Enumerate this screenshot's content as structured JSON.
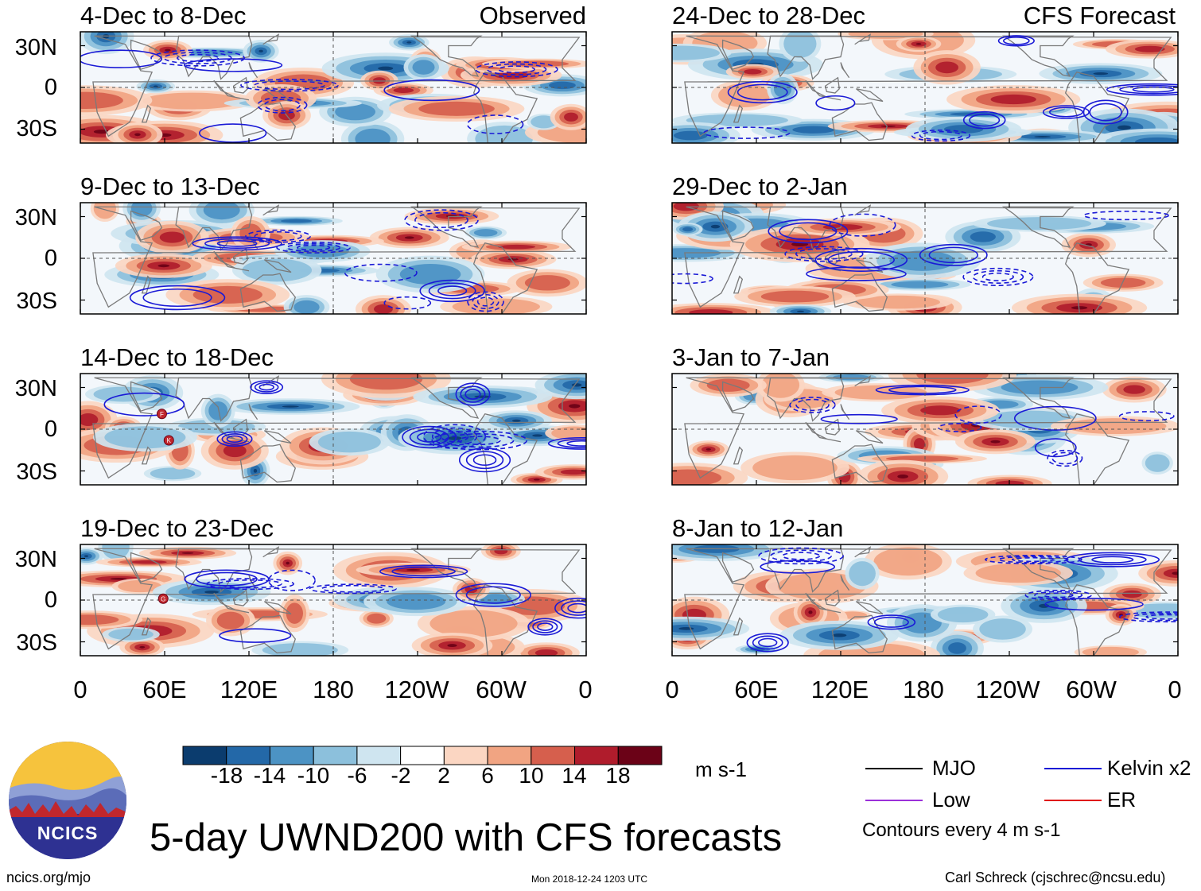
{
  "chart_data": {
    "type": "heatmap",
    "title": "5-day UWND200 with CFS forecasts",
    "variable": "200-hPa zonal wind anomaly",
    "units": "m s-1",
    "contour_note": "Contours every 4 m s-1",
    "x_tick_labels": [
      "0",
      "60E",
      "120E",
      "180",
      "120W",
      "60W",
      "0"
    ],
    "y_tick_labels": [
      "30N",
      "0",
      "30S"
    ],
    "x_range_deg_east": [
      0,
      360
    ],
    "y_range_deg": [
      -40,
      40
    ],
    "colorbar": {
      "tick_labels": [
        "-18",
        "-14",
        "-10",
        "-6",
        "-2",
        "2",
        "6",
        "10",
        "14",
        "18"
      ],
      "colors": [
        "#0b3c6e",
        "#2368a8",
        "#4c93c4",
        "#8cc0dc",
        "#cfe5f0",
        "#ffffff",
        "#fbd6c2",
        "#f1a482",
        "#d65f4d",
        "#b01c2c",
        "#6b0217"
      ]
    },
    "legend": [
      {
        "label": "MJO",
        "color": "#000000"
      },
      {
        "label": "Kelvin x2",
        "color": "#1a1ad6"
      },
      {
        "label": "Low",
        "color": "#9b30d9"
      },
      {
        "label": "ER",
        "color": "#e01010"
      }
    ],
    "panels": [
      {
        "id": "p1",
        "period": "4-Dec to 8-Dec",
        "tag": "Observed"
      },
      {
        "id": "p2",
        "period": "9-Dec to 13-Dec",
        "tag": ""
      },
      {
        "id": "p3",
        "period": "14-Dec to 18-Dec",
        "tag": "",
        "storm_markers": [
          "F",
          "K"
        ]
      },
      {
        "id": "p4",
        "period": "19-Dec to 23-Dec",
        "tag": "",
        "storm_markers": [
          "G"
        ]
      },
      {
        "id": "p5",
        "period": "24-Dec to 28-Dec",
        "tag": "CFS Forecast"
      },
      {
        "id": "p6",
        "period": "29-Dec to 2-Jan",
        "tag": ""
      },
      {
        "id": "p7",
        "period": "3-Jan to 7-Jan",
        "tag": ""
      },
      {
        "id": "p8",
        "period": "8-Jan to 12-Jan",
        "tag": ""
      }
    ]
  },
  "footer": {
    "logo_text": "NCICS",
    "website": "ncics.org/mjo",
    "timestamp": "Mon 2018-12-24 1203 UTC",
    "author": "Carl Schreck (cjschrec@ncsu.edu)"
  },
  "colors": {
    "dark_blue": "#0b3c6e",
    "dark_red": "#6b0217",
    "contour_blue": "#1a1ad6",
    "land_gray": "#7a7a7a"
  }
}
